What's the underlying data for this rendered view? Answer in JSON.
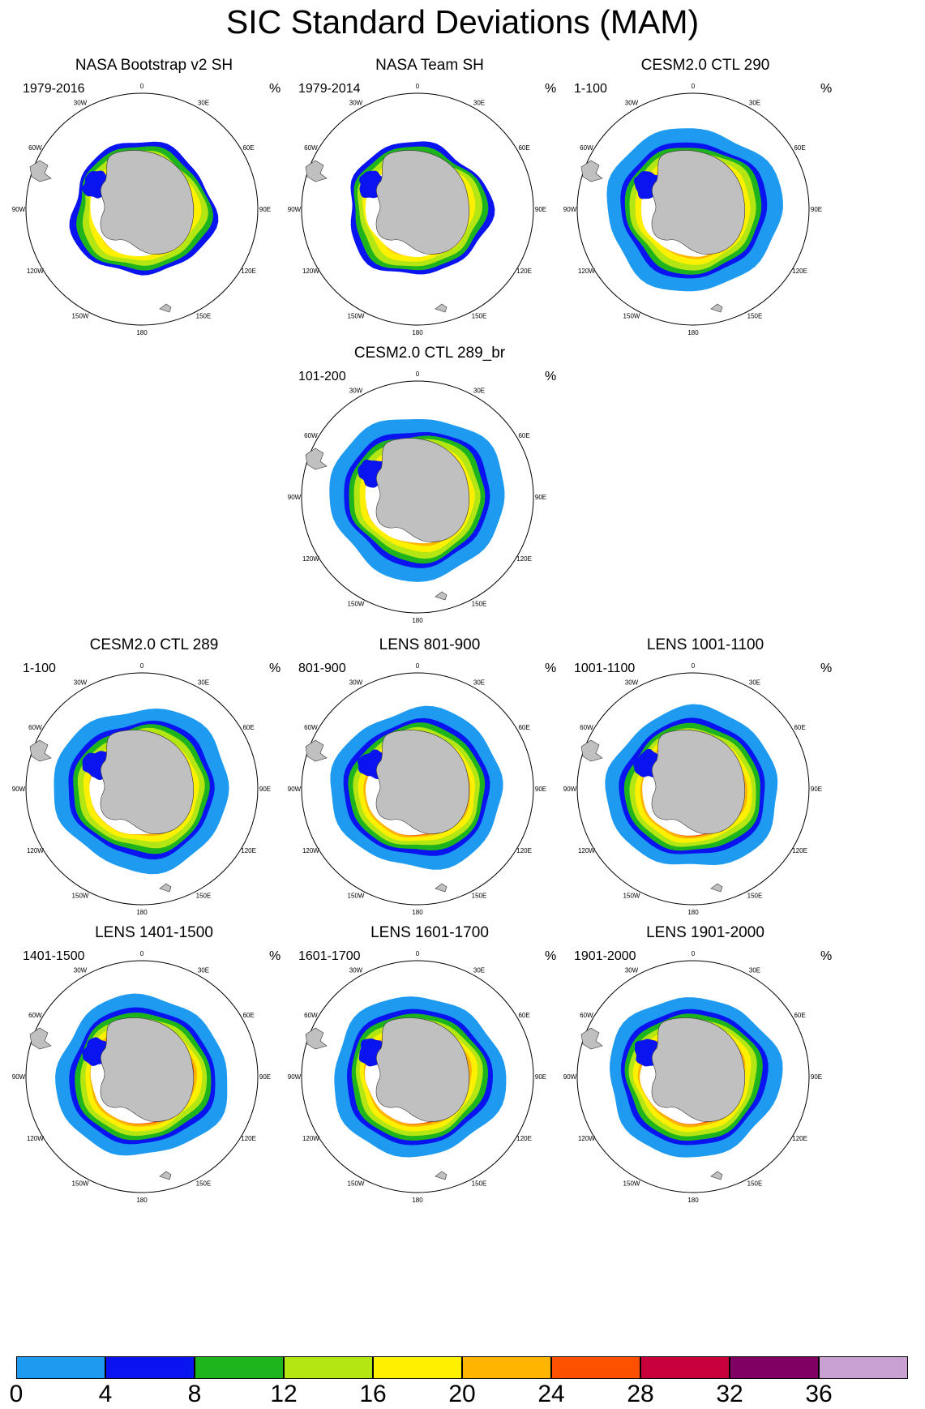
{
  "title": "SIC Standard Deviations (MAM)",
  "unit_label": "%",
  "colors": {
    "land": "#c0c0c0",
    "ocean": "#ffffff",
    "grid_circle": "#000000"
  },
  "lon_labels": [
    "0",
    "30E",
    "60E",
    "90E",
    "120E",
    "150E",
    "180",
    "150W",
    "120W",
    "90W",
    "60W",
    "30W"
  ],
  "panels": [
    {
      "title": "NASA Bootstrap v2 SH",
      "period": "1979-2016",
      "variant": "obs"
    },
    {
      "title": "NASA Team SH",
      "period": "1979-2014",
      "variant": "obs"
    },
    {
      "title": "CESM2.0 CTL 290",
      "period": "1-100",
      "variant": "model"
    },
    {
      "title": "CESM2.0 CTL 289_br",
      "period": "101-200",
      "variant": "model"
    },
    {
      "title": "CESM2.0 CTL 289",
      "period": "1-100",
      "variant": "model"
    },
    {
      "title": "LENS 801-900",
      "period": "801-900",
      "variant": "lens"
    },
    {
      "title": "LENS 1001-1100",
      "period": "1001-1100",
      "variant": "lens"
    },
    {
      "title": "LENS 1401-1500",
      "period": "1401-1500",
      "variant": "lens"
    },
    {
      "title": "LENS 1601-1700",
      "period": "1601-1700",
      "variant": "lens"
    },
    {
      "title": "LENS 1901-2000",
      "period": "1901-2000",
      "variant": "lens"
    }
  ],
  "colorbar": {
    "ticks": [
      "0",
      "4",
      "8",
      "12",
      "16",
      "20",
      "24",
      "28",
      "32",
      "36"
    ],
    "colors": [
      "#1e9bf0",
      "#0a14f0",
      "#1eb41e",
      "#b4e614",
      "#fff000",
      "#ffb400",
      "#ff5000",
      "#c8003c",
      "#800064",
      "#c8a0d2"
    ]
  }
}
